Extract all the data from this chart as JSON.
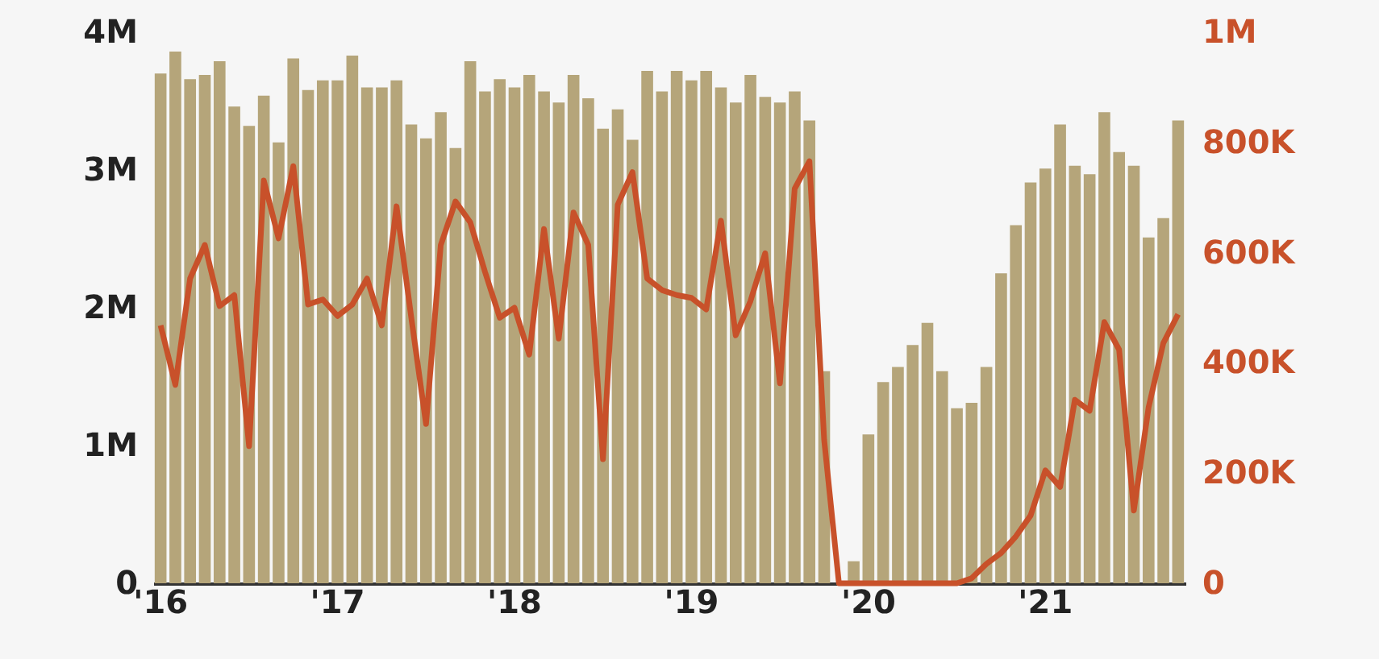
{
  "chart_data": {
    "type": "bar",
    "categories": [
      "'16",
      null,
      null,
      null,
      null,
      null,
      null,
      null,
      null,
      null,
      null,
      null,
      "'17",
      null,
      null,
      null,
      null,
      null,
      null,
      null,
      null,
      null,
      null,
      null,
      "'18",
      null,
      null,
      null,
      null,
      null,
      null,
      null,
      null,
      null,
      null,
      null,
      "'19",
      null,
      null,
      null,
      null,
      null,
      null,
      null,
      null,
      null,
      null,
      null,
      "'20",
      null,
      null,
      null,
      null,
      null,
      null,
      null,
      null,
      null,
      null,
      null,
      "'21",
      null,
      null,
      null,
      null,
      null,
      null,
      null,
      null,
      null
    ],
    "series": [
      {
        "color": "#b5a57a",
        "values": [
          3700000,
          3860000,
          3660000,
          3690000,
          3790000,
          3460000,
          3320000,
          3540000,
          3200000,
          3810000,
          3580000,
          3650000,
          3650000,
          3830000,
          3600000,
          3600000,
          3650000,
          3330000,
          3230000,
          3420000,
          3160000,
          3790000,
          3570000,
          3660000,
          3600000,
          3690000,
          3570000,
          3490000,
          3690000,
          3520000,
          3300000,
          3440000,
          3220000,
          3720000,
          3570000,
          3720000,
          3650000,
          3720000,
          3600000,
          3490000,
          3690000,
          3530000,
          3490000,
          3570000,
          3360000,
          1540000,
          0,
          160000,
          1080000,
          1460000,
          1570000,
          1730000,
          1890000,
          1540000,
          1270000,
          1310000,
          1570000,
          2250000,
          2600000,
          2910000,
          3010000,
          3330000,
          3030000,
          2970000,
          3420000,
          3130000,
          3030000,
          2510000,
          2650000,
          3360000
        ]
      },
      {
        "type": "line",
        "axis": "y2",
        "color": "#c8512a",
        "values": [
          468000,
          360000,
          553000,
          614000,
          503000,
          523000,
          249000,
          731000,
          626000,
          757000,
          506000,
          515000,
          485000,
          506000,
          553000,
          468000,
          684000,
          482000,
          289000,
          614000,
          693000,
          655000,
          565000,
          482000,
          500000,
          415000,
          643000,
          444000,
          673000,
          614000,
          225000,
          687000,
          746000,
          553000,
          532000,
          523000,
          518000,
          497000,
          658000,
          450000,
          512000,
          599000,
          363000,
          716000,
          766000,
          260000,
          0,
          0,
          0,
          0,
          0,
          0,
          0,
          0,
          0,
          9000,
          35000,
          55000,
          85000,
          123000,
          205000,
          175000,
          333000,
          313000,
          474000,
          424000,
          132000,
          319000,
          436000,
          488000
        ]
      }
    ],
    "ylim": [
      0,
      4000000
    ],
    "yticks": [
      0,
      {
        "value": 1000000,
        "label": "1M"
      },
      {
        "value": 2000000,
        "label": "2M"
      },
      {
        "value": 3000000,
        "label": "3M"
      },
      {
        "value": 4000000,
        "label": "4M"
      }
    ],
    "y2lim": [
      0,
      1000000
    ],
    "y2ticks": [
      0,
      {
        "value": 200000,
        "label": "200K"
      },
      {
        "value": 400000,
        "label": "400K"
      },
      {
        "value": 600000,
        "label": "600K"
      },
      {
        "value": 800000,
        "label": "800K"
      },
      {
        "value": 1000000,
        "label": "1M"
      }
    ],
    "grid": false,
    "line_style": "solid"
  }
}
